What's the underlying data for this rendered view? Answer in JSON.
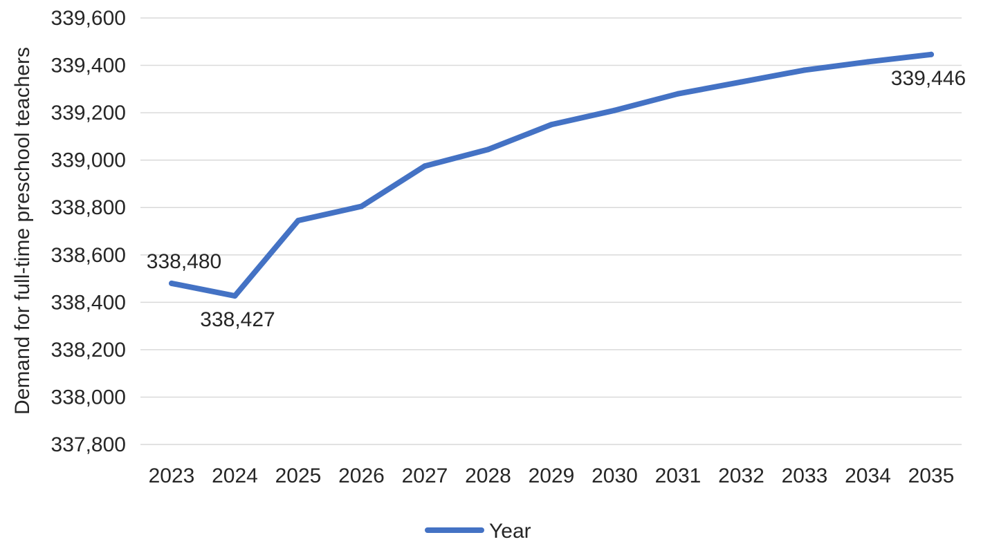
{
  "chart_data": {
    "type": "line",
    "title": "",
    "xlabel": "",
    "ylabel": "Demand for full-time preschool teachers",
    "categories": [
      "2023",
      "2024",
      "2025",
      "2026",
      "2027",
      "2028",
      "2029",
      "2030",
      "2031",
      "2032",
      "2033",
      "2034",
      "2035"
    ],
    "series": [
      {
        "name": "Year",
        "values": [
          338480,
          338427,
          338745,
          338805,
          338975,
          339045,
          339150,
          339210,
          339280,
          339330,
          339380,
          339415,
          339446
        ],
        "color": "#4472c4"
      }
    ],
    "data_labels": [
      {
        "category": "2023",
        "text": "338,480",
        "position": "above"
      },
      {
        "category": "2024",
        "text": "338,427",
        "position": "below"
      },
      {
        "category": "2035",
        "text": "339,446",
        "position": "below"
      }
    ],
    "y_ticks": [
      "337,800",
      "338,000",
      "338,200",
      "338,400",
      "338,600",
      "338,800",
      "339,000",
      "339,200",
      "339,400",
      "339,600"
    ],
    "ylim": [
      337800,
      339600
    ],
    "grid": true,
    "legend": {
      "position": "bottom",
      "entries": [
        "Year"
      ]
    }
  }
}
